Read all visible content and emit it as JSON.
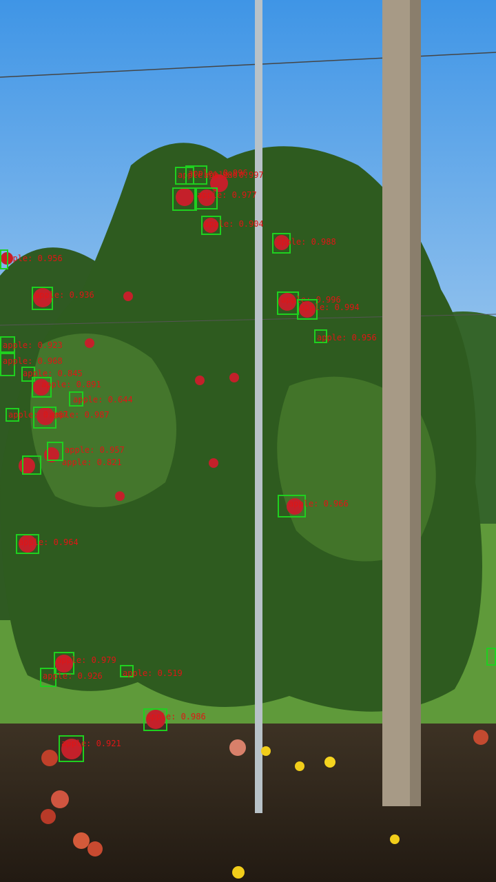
{
  "image": {
    "description_colors": {
      "box": "#1fd01f",
      "label": "#e01515",
      "sky": "#5fa8ea"
    }
  },
  "detections": [
    {
      "label": "apple: 0.956"
    },
    {
      "label": "apple: 0.986"
    },
    {
      "label": "apple: 0.996"
    },
    {
      "label": "apple: 0.997"
    },
    {
      "label": "apple: 0.977"
    },
    {
      "label": "apple: 0.904"
    },
    {
      "label": "apple: 0.988"
    },
    {
      "label": "apple: 0.996"
    },
    {
      "label": "apple: 0.994"
    },
    {
      "label": "apple: 0.956"
    },
    {
      "label": "apple: 0.936"
    },
    {
      "label": "apple: 0.923"
    },
    {
      "label": "apple: 0.968"
    },
    {
      "label": "apple: 0.845"
    },
    {
      "label": "apple: 0.891"
    },
    {
      "label": "apple: 0.644"
    },
    {
      "label": "apple: 0.967"
    },
    {
      "label": "apple: 0.987"
    },
    {
      "label": "apple: 0.821"
    },
    {
      "label": "apple: 0.957"
    },
    {
      "label": "apple: 0.966"
    },
    {
      "label": "apple: 0.964"
    },
    {
      "label": "apple: 0.979"
    },
    {
      "label": "apple: 0.926"
    },
    {
      "label": "apple: 0.519"
    },
    {
      "label": "apple: 0.986"
    },
    {
      "label": "apple: 0.921"
    }
  ]
}
